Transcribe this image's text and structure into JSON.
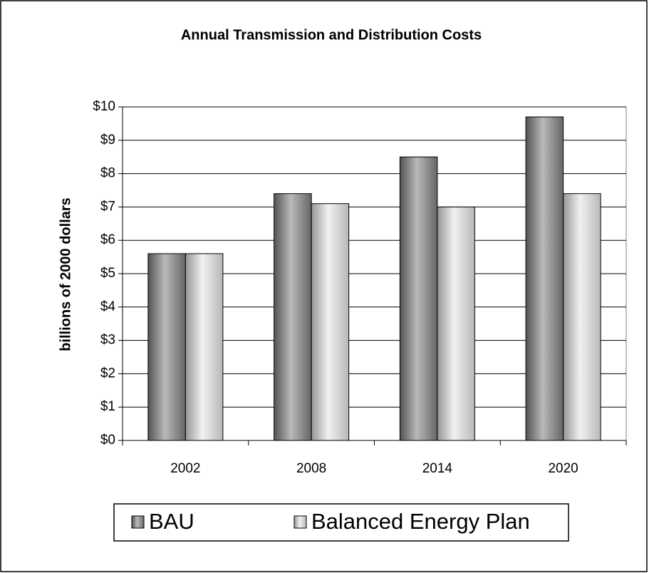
{
  "chart_data": {
    "type": "bar",
    "title": "Annual Transmission and Distribution Costs",
    "y_label": "billions of 2000 dollars",
    "categories": [
      "2002",
      "2008",
      "2014",
      "2020"
    ],
    "series": [
      {
        "name": "BAU",
        "color": "#808080",
        "values": [
          5.6,
          7.4,
          8.5,
          9.7
        ]
      },
      {
        "name": "Balanced Energy Plan",
        "color": "#e6e6e6",
        "values": [
          5.6,
          7.1,
          7.0,
          7.4
        ]
      }
    ],
    "ylim": [
      0,
      10
    ],
    "yticks": [
      {
        "value": 0,
        "label": "$0"
      },
      {
        "value": 1,
        "label": "$1"
      },
      {
        "value": 2,
        "label": "$2"
      },
      {
        "value": 3,
        "label": "$3"
      },
      {
        "value": 4,
        "label": "$4"
      },
      {
        "value": 5,
        "label": "$5"
      },
      {
        "value": 6,
        "label": "$6"
      },
      {
        "value": 7,
        "label": "$7"
      },
      {
        "value": 8,
        "label": "$8"
      },
      {
        "value": 9,
        "label": "$9"
      },
      {
        "value": 10,
        "label": "$10"
      }
    ],
    "grid": true,
    "legend": "bottom"
  }
}
